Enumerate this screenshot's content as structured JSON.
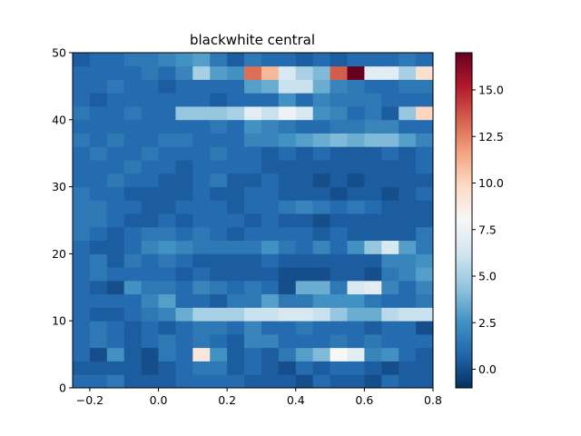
{
  "chart_data": {
    "type": "heatmap",
    "title": "blackwhite central",
    "xlabel": "",
    "ylabel": "",
    "x_edges": [
      -0.25,
      -0.2,
      -0.15,
      -0.1,
      -0.05,
      0.0,
      0.05,
      0.1,
      0.15,
      0.2,
      0.25,
      0.3,
      0.35,
      0.4,
      0.45,
      0.5,
      0.55,
      0.6,
      0.65,
      0.7,
      0.75,
      0.8
    ],
    "y_edges": [
      0,
      2,
      4,
      6,
      8,
      10,
      12,
      14,
      16,
      18,
      20,
      22,
      24,
      26,
      28,
      30,
      32,
      34,
      36,
      38,
      40,
      42,
      44,
      46,
      48,
      50
    ],
    "xlim": [
      -0.25,
      0.8
    ],
    "ylim": [
      0,
      50
    ],
    "x_ticks": [
      -0.2,
      0.0,
      0.2,
      0.4,
      0.6,
      0.8
    ],
    "x_tick_labels": [
      "−0.2",
      "0.0",
      "0.2",
      "0.4",
      "0.6",
      "0.8"
    ],
    "y_ticks": [
      0,
      10,
      20,
      30,
      40,
      50
    ],
    "y_tick_labels": [
      "0",
      "10",
      "20",
      "30",
      "40",
      "50"
    ],
    "colorbar": {
      "colormap": "RdBu",
      "vmin": -1,
      "vmax": 17,
      "ticks": [
        0,
        2.5,
        5,
        7.5,
        10,
        12.5,
        15
      ],
      "tick_labels": [
        "0.0",
        "2.5",
        "5.0",
        "7.5",
        "10.0",
        "12.5",
        "15.0"
      ]
    },
    "values": [
      [
        1.0,
        1.0,
        1.5,
        0.5,
        0.5,
        0.5,
        1.0,
        1.0,
        1.0,
        1.0,
        0.5,
        0.5,
        0.5,
        0.0,
        1.0,
        0.5,
        0.5,
        0.0,
        1.0,
        0.5,
        0.5
      ],
      [
        0.5,
        0.5,
        0.5,
        0.5,
        0.0,
        0.5,
        1.0,
        1.5,
        1.5,
        0.5,
        1.0,
        0.5,
        0.0,
        1.0,
        0.5,
        1.0,
        1.0,
        0.5,
        0.0,
        0.5,
        0.5
      ],
      [
        1.0,
        0.0,
        2.5,
        0.5,
        0.0,
        1.5,
        1.0,
        9.0,
        2.5,
        0.5,
        1.0,
        0.5,
        1.5,
        3.0,
        4.0,
        8.0,
        7.0,
        2.0,
        2.5,
        1.0,
        0.5
      ],
      [
        1.0,
        1.5,
        1.0,
        0.5,
        1.0,
        1.5,
        1.0,
        1.5,
        1.0,
        0.5,
        2.0,
        2.0,
        1.0,
        1.0,
        1.0,
        1.5,
        1.0,
        1.5,
        1.0,
        1.0,
        1.0
      ],
      [
        1.0,
        1.5,
        1.0,
        0.5,
        1.0,
        0.5,
        1.0,
        1.5,
        1.5,
        1.0,
        2.0,
        1.0,
        1.0,
        1.5,
        1.0,
        1.0,
        1.0,
        0.5,
        1.0,
        1.0,
        0.0
      ],
      [
        1.0,
        0.5,
        0.5,
        1.0,
        1.5,
        2.0,
        3.5,
        5.0,
        5.0,
        5.0,
        6.0,
        6.0,
        6.5,
        6.5,
        6.0,
        4.5,
        3.5,
        3.5,
        5.5,
        6.0,
        6.0
      ],
      [
        1.0,
        1.0,
        1.0,
        1.0,
        2.0,
        3.0,
        1.0,
        1.0,
        0.5,
        1.5,
        1.5,
        3.0,
        1.5,
        1.5,
        2.5,
        2.5,
        2.5,
        1.5,
        1.0,
        1.0,
        1.5
      ],
      [
        1.0,
        0.5,
        0.0,
        2.5,
        1.5,
        1.5,
        1.0,
        2.0,
        1.5,
        1.0,
        1.5,
        1.0,
        0.0,
        3.5,
        3.5,
        1.5,
        6.5,
        7.0,
        2.0,
        1.0,
        2.0
      ],
      [
        1.0,
        1.5,
        1.0,
        1.0,
        1.0,
        1.0,
        0.5,
        1.0,
        0.5,
        0.5,
        0.5,
        0.5,
        0.0,
        0.0,
        0.0,
        0.5,
        0.5,
        0.0,
        1.5,
        2.0,
        3.0
      ],
      [
        1.0,
        1.5,
        0.5,
        1.5,
        1.0,
        1.5,
        1.0,
        0.5,
        0.5,
        0.5,
        0.5,
        1.0,
        0.5,
        0.5,
        0.5,
        0.5,
        0.5,
        0.5,
        2.0,
        2.0,
        2.5
      ],
      [
        1.0,
        0.5,
        0.5,
        1.0,
        2.0,
        2.5,
        2.0,
        1.5,
        1.5,
        1.5,
        1.5,
        2.5,
        1.5,
        1.0,
        2.0,
        1.0,
        2.5,
        4.5,
        6.5,
        3.0,
        1.5
      ],
      [
        1.5,
        1.0,
        0.5,
        1.0,
        1.5,
        1.5,
        1.0,
        1.5,
        1.0,
        0.5,
        1.0,
        1.0,
        1.0,
        1.0,
        0.5,
        1.0,
        0.5,
        0.5,
        0.5,
        0.5,
        1.5
      ],
      [
        1.5,
        1.5,
        1.0,
        0.5,
        0.5,
        1.0,
        0.5,
        1.0,
        1.0,
        1.0,
        0.5,
        1.0,
        0.5,
        0.5,
        0.0,
        0.5,
        0.5,
        0.5,
        0.5,
        0.5,
        0.5
      ],
      [
        1.5,
        1.5,
        1.0,
        1.0,
        0.5,
        0.5,
        1.0,
        1.0,
        1.0,
        0.5,
        1.0,
        1.0,
        1.5,
        2.0,
        1.5,
        1.0,
        1.5,
        1.0,
        0.5,
        0.5,
        0.5
      ],
      [
        1.5,
        1.0,
        1.0,
        0.5,
        0.5,
        0.5,
        0.5,
        1.0,
        0.5,
        0.5,
        1.0,
        1.0,
        0.5,
        0.5,
        0.5,
        0.0,
        0.5,
        0.5,
        0.0,
        0.5,
        1.0
      ],
      [
        1.0,
        1.0,
        1.5,
        1.0,
        1.0,
        0.5,
        0.5,
        1.0,
        1.5,
        0.5,
        0.5,
        1.0,
        0.5,
        0.5,
        0.0,
        0.5,
        0.0,
        0.5,
        0.5,
        0.5,
        0.5
      ],
      [
        1.0,
        1.0,
        1.0,
        1.5,
        1.0,
        1.0,
        0.5,
        1.0,
        1.0,
        1.0,
        1.0,
        0.5,
        0.5,
        0.5,
        0.5,
        0.5,
        0.5,
        0.5,
        0.5,
        0.5,
        1.0
      ],
      [
        1.0,
        1.5,
        1.0,
        1.0,
        1.5,
        1.0,
        1.0,
        1.0,
        1.5,
        1.0,
        1.0,
        0.5,
        1.0,
        0.5,
        1.0,
        0.5,
        0.5,
        0.5,
        1.0,
        0.5,
        1.0
      ],
      [
        1.5,
        1.0,
        1.5,
        1.0,
        1.0,
        1.5,
        1.5,
        1.0,
        1.0,
        1.0,
        2.0,
        2.0,
        2.5,
        3.0,
        3.5,
        4.0,
        3.5,
        4.0,
        4.0,
        3.0,
        2.0
      ],
      [
        1.0,
        1.0,
        1.0,
        1.0,
        1.0,
        1.0,
        1.0,
        1.0,
        1.5,
        1.0,
        2.5,
        2.0,
        1.5,
        1.0,
        1.0,
        1.5,
        1.5,
        2.0,
        2.0,
        1.0,
        1.0
      ],
      [
        1.5,
        1.0,
        1.0,
        1.5,
        1.0,
        1.0,
        4.5,
        4.5,
        4.5,
        5.0,
        7.0,
        6.0,
        7.5,
        6.5,
        2.5,
        2.0,
        1.0,
        1.5,
        0.5,
        4.5,
        10.0
      ],
      [
        1.0,
        0.5,
        1.0,
        1.0,
        1.0,
        1.0,
        1.0,
        1.0,
        0.5,
        1.0,
        1.0,
        1.0,
        2.5,
        1.0,
        2.0,
        1.5,
        1.5,
        1.5,
        1.0,
        1.0,
        1.0
      ],
      [
        1.0,
        1.0,
        1.5,
        1.0,
        1.0,
        0.5,
        1.0,
        1.0,
        1.0,
        1.0,
        3.0,
        3.5,
        6.0,
        6.0,
        3.5,
        2.0,
        1.5,
        1.0,
        1.0,
        1.5,
        1.5
      ],
      [
        1.0,
        1.0,
        1.0,
        1.0,
        1.5,
        1.0,
        2.0,
        5.0,
        3.0,
        2.5,
        13.0,
        11.0,
        6.5,
        5.0,
        4.0,
        13.5,
        17.0,
        7.0,
        7.0,
        5.0,
        9.5
      ],
      [
        0.5,
        1.0,
        1.0,
        1.5,
        1.5,
        2.0,
        2.5,
        3.0,
        1.5,
        0.5,
        1.5,
        1.0,
        1.0,
        0.5,
        1.0,
        0.5,
        1.0,
        1.0,
        1.0,
        1.5,
        1.0
      ]
    ]
  }
}
